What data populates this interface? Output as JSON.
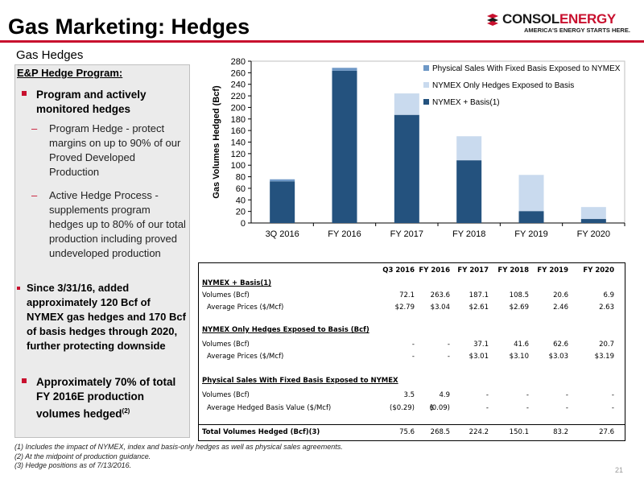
{
  "header": {
    "title": "Gas Marketing: Hedges",
    "subtitle": "Gas Hedges",
    "logo_main_a": "CONSOL",
    "logo_main_b": "ENERGY",
    "logo_tagline": "AMERICA'S ENERGY STARTS HERE."
  },
  "colors": {
    "accent_red": "#c8102e",
    "nymex_basis": "#24527e",
    "nymex_only": "#c9daee",
    "physical_sales": "#6e98c6"
  },
  "left_panel": {
    "heading": "E&P Hedge Program:",
    "bullet1": "Program and actively monitored hedges",
    "sub1_dash": "–",
    "sub1": "Program Hedge - protect margins on up to 90% of our Proved Developed Production",
    "sub2_dash": "–",
    "sub2": "Active Hedge Process - supplements program hedges up to 80% of our total production including proved undeveloped production",
    "bullet2": "Since 3/31/16, added approximately 120 Bcf of NYMEX gas hedges and 170 Bcf of basis hedges through 2020, further protecting downside",
    "bullet3": "Approximately 70% of total FY 2016E production volumes hedged",
    "bullet3_sup": "(2)"
  },
  "chart_data": {
    "type": "bar",
    "stacked": true,
    "categories": [
      "3Q 2016",
      "FY 2016",
      "FY 2017",
      "FY 2018",
      "FY 2019",
      "FY 2020"
    ],
    "series": [
      {
        "name": "NYMEX + Basis(1)",
        "values": [
          72.1,
          263.6,
          187.1,
          108.5,
          20.6,
          6.9
        ],
        "color": "#24527e"
      },
      {
        "name": "NYMEX Only Hedges Exposed to Basis",
        "values": [
          0,
          0,
          37.1,
          41.6,
          62.6,
          20.7
        ],
        "color": "#c9daee"
      },
      {
        "name": "Physical Sales With Fixed Basis Exposed to NYMEX",
        "values": [
          3.5,
          4.9,
          0,
          0,
          0,
          0
        ],
        "color": "#6e98c6"
      }
    ],
    "ylabel": "Gas Volumes Hedged (Bcf)",
    "xlabel": "",
    "ylim": [
      0,
      280
    ],
    "yticks": [
      0,
      20,
      40,
      60,
      80,
      100,
      120,
      140,
      160,
      180,
      200,
      220,
      240,
      260,
      280
    ],
    "legend_entries": [
      "Physical Sales With Fixed Basis Exposed to NYMEX",
      "NYMEX Only Hedges Exposed to Basis",
      "NYMEX + Basis(1)"
    ],
    "legend_position": "top-right",
    "grid": false
  },
  "table": {
    "columns": [
      "Q3 2016",
      "FY 2016",
      "FY 2017",
      "FY 2018",
      "FY 2019",
      "FY 2020"
    ],
    "sec1": "NYMEX + Basis(1)",
    "sec1_vol_label": "Volumes (Bcf)",
    "sec1_vol": [
      "72.1",
      "263.6",
      "187.1",
      "108.5",
      "20.6",
      "6.9"
    ],
    "sec1_price_label": "Average Prices ($/Mcf)",
    "sec1_price": [
      "$2.79",
      "$3.04",
      "$2.61",
      "$2.69",
      "2.46",
      "2.63"
    ],
    "sec2": "NYMEX Only Hedges Exposed to Basis (Bcf)",
    "sec2_vol_label": "Volumes (Bcf)",
    "sec2_vol": [
      "-",
      "-",
      "37.1",
      "41.6",
      "62.6",
      "20.7"
    ],
    "sec2_price_label": "Average Prices ($/Mcf)",
    "sec2_price": [
      "-",
      "-",
      "$3.01",
      "$3.10",
      "$3.03",
      "$3.19"
    ],
    "sec3": "Physical Sales With Fixed Basis Exposed to NYMEX",
    "sec3_vol_label": "Volumes (Bcf)",
    "sec3_vol": [
      "3.5",
      "4.9",
      "-",
      "-",
      "-",
      "-"
    ],
    "sec3_basis_label": "Average Hedged Basis Value ($/Mcf)",
    "sec3_basis": [
      "($0.29)",
      "(0.09)",
      "-",
      "-",
      "-",
      "-"
    ],
    "sec3_basis_dollar": "$",
    "total_label": "Total Volumes Hedged (Bcf)(3)",
    "total": [
      "75.6",
      "268.5",
      "224.2",
      "150.1",
      "83.2",
      "27.6"
    ]
  },
  "footnotes": {
    "n1": "(1)  Includes the impact of NYMEX, index and basis-only hedges as well as physical sales agreements.",
    "n2": "(2)  At the midpoint of production guidance.",
    "n3": "(3)  Hedge positions as of 7/13/2016."
  },
  "page_number": "21"
}
